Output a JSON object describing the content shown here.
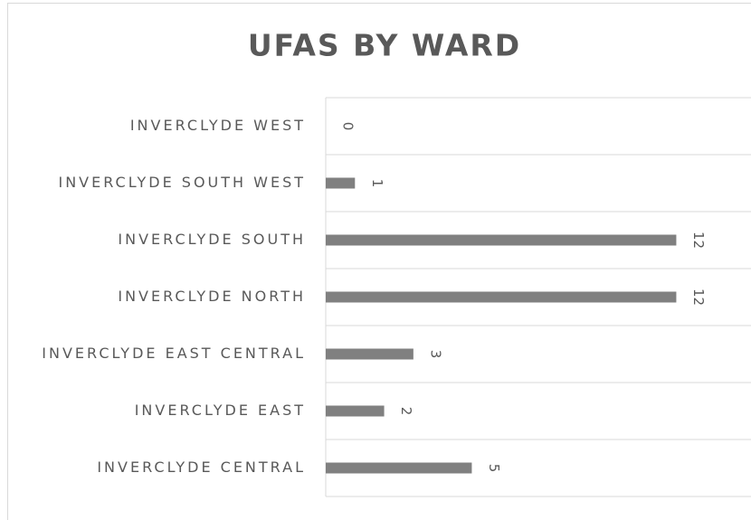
{
  "chart_data": {
    "type": "bar",
    "orientation": "horizontal",
    "title": "UFAS BY WARD",
    "categories": [
      "INVERCLYDE WEST",
      "INVERCLYDE SOUTH WEST",
      "INVERCLYDE SOUTH",
      "INVERCLYDE NORTH",
      "INVERCLYDE EAST CENTRAL",
      "INVERCLYDE EAST",
      "INVERCLYDE CENTRAL"
    ],
    "values": [
      0,
      1,
      12,
      12,
      3,
      2,
      5
    ],
    "color": "#808080",
    "xlim": [
      0,
      14
    ]
  }
}
